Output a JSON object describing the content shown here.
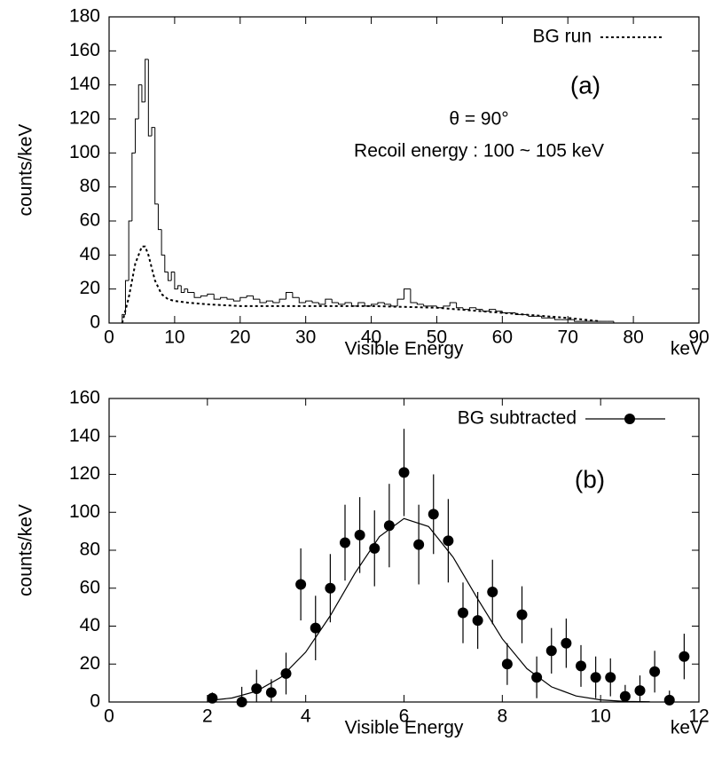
{
  "chart_data": [
    {
      "type": "histogram",
      "ylabel": "counts/keV",
      "xlabel": "Visible Energy",
      "xunit": "keV",
      "annotations": [
        "(a)",
        "θ = 90°",
        "Recoil energy : 100 ~ 105 keV"
      ],
      "bins": [
        1.5,
        2,
        2.5,
        3,
        3.5,
        4,
        4.5,
        5,
        5.5,
        6,
        6.5,
        7,
        7.5,
        8,
        8.5,
        9,
        9.5,
        10,
        10.5,
        11,
        11.5,
        12,
        13,
        14,
        15,
        16,
        17,
        18,
        19,
        20,
        21,
        22,
        23,
        24,
        25,
        26,
        27,
        28,
        29,
        30,
        31,
        32,
        33,
        34,
        35,
        36,
        37,
        38,
        39,
        40,
        41,
        42,
        43,
        44,
        45,
        46,
        47,
        48,
        49,
        50,
        51,
        52,
        53,
        54,
        55,
        56,
        57,
        58,
        59,
        60,
        61,
        62,
        63,
        64,
        65,
        66,
        67,
        68,
        69,
        70,
        71,
        72,
        73,
        74,
        75,
        76,
        77,
        78
      ],
      "values": [
        0,
        5,
        25,
        60,
        100,
        120,
        140,
        130,
        155,
        110,
        115,
        70,
        55,
        40,
        30,
        25,
        30,
        20,
        22,
        18,
        20,
        18,
        15,
        16,
        17,
        14,
        15,
        14,
        13,
        15,
        16,
        14,
        12,
        13,
        12,
        14,
        18,
        15,
        12,
        13,
        12,
        11,
        14,
        12,
        11,
        12,
        10,
        12,
        10,
        11,
        12,
        11,
        10,
        14,
        20,
        12,
        11,
        10,
        10,
        9,
        10,
        12,
        9,
        8,
        9,
        8,
        7,
        8,
        7,
        6,
        6,
        5,
        5,
        4,
        4,
        3,
        3,
        2,
        2,
        2,
        1,
        1,
        1,
        1,
        1,
        1,
        0
      ],
      "color": "#000000",
      "line": {
        "name": "BG run",
        "color": "#000000",
        "x": [
          2,
          3,
          4,
          5,
          5.5,
          6,
          7,
          8,
          9,
          10,
          12,
          15,
          20,
          30,
          40,
          50,
          60,
          70,
          75
        ],
        "values": [
          0,
          15,
          35,
          45,
          45,
          40,
          25,
          17,
          14,
          13,
          12,
          11,
          10,
          10,
          10,
          9,
          6,
          3,
          1
        ]
      },
      "xlim": [
        0,
        90
      ],
      "xticks": [
        0,
        10,
        20,
        30,
        40,
        50,
        60,
        70,
        80,
        90
      ],
      "ylim": [
        0,
        180
      ],
      "yticks": [
        0,
        20,
        40,
        60,
        80,
        100,
        120,
        140,
        160,
        180
      ]
    },
    {
      "type": "scatter",
      "ylabel": "counts/keV",
      "xlabel": "Visible Energy",
      "xunit": "keV",
      "annotations": [
        "(b)"
      ],
      "name": "BG subtracted",
      "color": "#000000",
      "x": [
        2.1,
        2.7,
        3.0,
        3.3,
        3.6,
        3.9,
        4.2,
        4.5,
        4.8,
        5.1,
        5.4,
        5.7,
        6.0,
        6.3,
        6.6,
        6.9,
        7.2,
        7.5,
        7.8,
        8.1,
        8.4,
        8.7,
        9.0,
        9.3,
        9.6,
        9.9,
        10.2,
        10.5,
        10.8,
        11.1,
        11.4,
        11.7
      ],
      "values": [
        2,
        0,
        7,
        5,
        15,
        62,
        39,
        60,
        84,
        88,
        81,
        93,
        121,
        83,
        99,
        85,
        47,
        43,
        58,
        20,
        46,
        13,
        27,
        31,
        19,
        13,
        13,
        3,
        6,
        16,
        1,
        24
      ],
      "errors": [
        3,
        8,
        10,
        7,
        11,
        19,
        17,
        18,
        20,
        20,
        20,
        22,
        23,
        21,
        21,
        22,
        16,
        15,
        17,
        11,
        15,
        11,
        12,
        13,
        11,
        11,
        10,
        6,
        8,
        11,
        5,
        12
      ],
      "fit": {
        "x": [
          2,
          2.5,
          3,
          3.5,
          4,
          4.5,
          5,
          5.5,
          6,
          6.5,
          7,
          7.5,
          8,
          8.5,
          9,
          9.5,
          10,
          10.5,
          11
        ],
        "values": [
          0.7,
          2.1,
          5.7,
          13.1,
          26.3,
          45.5,
          67.8,
          87.2,
          96.7,
          92.5,
          76.3,
          54.3,
          33.3,
          17.6,
          8.0,
          3.2,
          1.1,
          0.3,
          0.1
        ]
      },
      "xlim": [
        0,
        12
      ],
      "xticks": [
        0,
        2,
        4,
        6,
        8,
        10,
        12
      ],
      "ylim": [
        0,
        160
      ],
      "yticks": [
        0,
        20,
        40,
        60,
        80,
        100,
        120,
        140,
        160
      ]
    }
  ]
}
